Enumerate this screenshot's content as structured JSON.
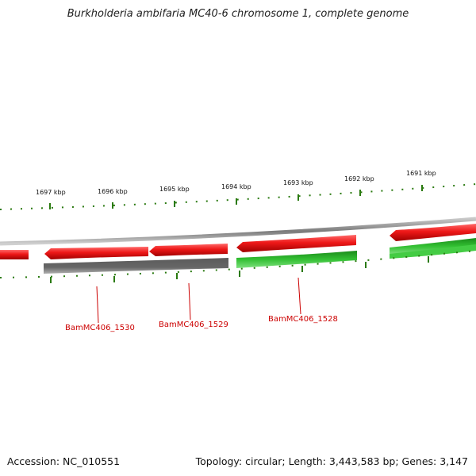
{
  "title": "Burkholderia ambifaria MC40-6 chromosome 1, complete genome",
  "footer": {
    "accession": "Accession: NC_010551",
    "summary": "Topology: circular; Length: 3,443,583 bp; Genes: 3,147"
  },
  "scale": {
    "ticks": [
      "1697 kbp",
      "1696 kbp",
      "1695 kbp",
      "1694 kbp",
      "1693 kbp",
      "1692 kbp",
      "1691 kbp"
    ]
  },
  "gene_labels": [
    "BamMC406_1530",
    "BamMC406_1529",
    "BamMC406_1528"
  ],
  "colors": {
    "forward_gene": "#e01010",
    "rna_gene": "#2aa12a",
    "pseudo_gene": "#555555",
    "tick": "#2a7a10",
    "backbone": "#8a8a8a",
    "label": "#cc0000"
  }
}
